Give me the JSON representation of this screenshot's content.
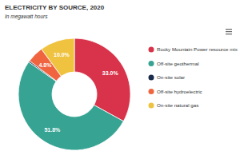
{
  "chart_data": {
    "type": "pie",
    "title": "ELECTRICITY BY SOURCE, 2020",
    "subtitle": "In megawatt hours",
    "categories": [
      "Rocky Mountain Power resource mix",
      "Off-site geothermal",
      "On-site solar",
      "Off-site hydroelectric",
      "On-site natural gas"
    ],
    "values": [
      33.0,
      51.8,
      0.4,
      4.8,
      10.0
    ],
    "value_labels": [
      "33.0%",
      "51.8%",
      null,
      "4.8%",
      "10.0%"
    ],
    "colors": [
      "#d8334a",
      "#36a393",
      "#1b2b4b",
      "#f0653f",
      "#efc23f"
    ],
    "data_labels": true,
    "legend": "right"
  }
}
